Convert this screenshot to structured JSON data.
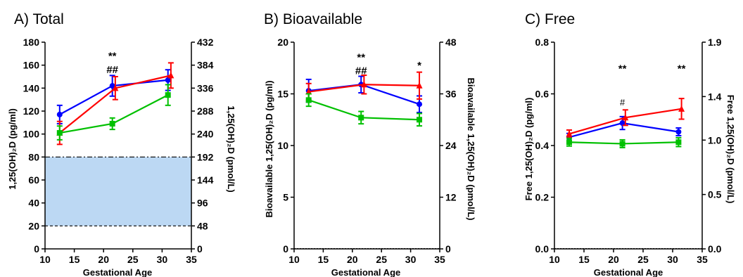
{
  "chart_data": [
    {
      "type": "line",
      "title": "A) Total",
      "xlabel": "Gestational Age",
      "ylabel": "1,25(OH)₂D (pg/ml)",
      "ylabel_right": "1,25(OH)₂D (pmol/L)",
      "xlim": [
        10,
        35
      ],
      "ylim": [
        0,
        180
      ],
      "xticks": [
        "10",
        "15",
        "20",
        "25",
        "30",
        "35"
      ],
      "yticks": [
        "0",
        "20",
        "40",
        "60",
        "80",
        "100",
        "120",
        "140",
        "160",
        "180"
      ],
      "yticks_right": [
        "0",
        "48",
        "96",
        "144",
        "192",
        "240",
        "288",
        "336",
        "384",
        "432"
      ],
      "reference_band": [
        20,
        80
      ],
      "series": [
        {
          "color": "#0000ff",
          "marker": "circle",
          "x": [
            12.5,
            21.5,
            31
          ],
          "y": [
            117,
            142,
            147
          ],
          "err": [
            8,
            9,
            9
          ]
        },
        {
          "color": "#ff0000",
          "marker": "triangle",
          "x": [
            12.5,
            22,
            31.5
          ],
          "y": [
            101,
            140,
            151
          ],
          "err": [
            10,
            10,
            11
          ]
        },
        {
          "color": "#00c000",
          "marker": "square",
          "x": [
            12.5,
            21.5,
            31
          ],
          "y": [
            101,
            109,
            134
          ],
          "err": [
            6,
            5,
            9
          ]
        }
      ],
      "annotations": [
        {
          "text": "**",
          "x": 21.5,
          "y": 165
        },
        {
          "text": "##",
          "x": 21.5,
          "y": 153
        }
      ]
    },
    {
      "type": "line",
      "title": "B) Bioavailable",
      "xlabel": "Gestational Age",
      "ylabel": "Bioavailable 1,25(OH)₂D (pg/ml)",
      "ylabel_right": "Bioavailable 1,25(OH)₂D (pmol/L)",
      "xlim": [
        10,
        35
      ],
      "ylim": [
        0,
        20
      ],
      "xticks": [
        "10",
        "15",
        "20",
        "25",
        "30",
        "35"
      ],
      "yticks": [
        "0",
        "5",
        "10",
        "15",
        "20"
      ],
      "yticks_right": [
        "0",
        "12",
        "24",
        "36",
        "48"
      ],
      "series": [
        {
          "color": "#0000ff",
          "marker": "circle",
          "x": [
            12.5,
            21.5,
            31.5
          ],
          "y": [
            15.3,
            15.9,
            14.0
          ],
          "err": [
            1.1,
            0.8,
            0.8
          ]
        },
        {
          "color": "#ff0000",
          "marker": "triangle",
          "x": [
            12.5,
            22,
            31.5
          ],
          "y": [
            15.2,
            15.9,
            15.8
          ],
          "err": [
            0.8,
            0.9,
            1.3
          ]
        },
        {
          "color": "#00c000",
          "marker": "square",
          "x": [
            12.5,
            21.5,
            31.5
          ],
          "y": [
            14.4,
            12.7,
            12.5
          ],
          "err": [
            0.6,
            0.6,
            0.6
          ]
        }
      ],
      "annotations": [
        {
          "text": "**",
          "x": 21.5,
          "y": 18.2
        },
        {
          "text": "##",
          "x": 21.5,
          "y": 16.9
        },
        {
          "text": "*",
          "x": 31.5,
          "y": 17.4
        }
      ]
    },
    {
      "type": "line",
      "title": "C) Free",
      "xlabel": "Gestational Age",
      "ylabel": "Free 1,25(OH)₂D (pg/ml)",
      "ylabel_right": "Free 1,25(OH)₂D (pmol/L)",
      "xlim": [
        10,
        35
      ],
      "ylim": [
        0,
        0.8
      ],
      "xticks": [
        "10",
        "15",
        "20",
        "25",
        "30",
        "35"
      ],
      "yticks": [
        "0.0",
        "0.2",
        "0.4",
        "0.6",
        "0.8"
      ],
      "yticks_right": [
        "0.0",
        "0.5",
        "1.0",
        "1.4",
        "1.9"
      ],
      "yticks_right_values": [
        0,
        0.2105,
        0.421,
        0.5895,
        0.8
      ],
      "series": [
        {
          "color": "#0000ff",
          "marker": "circle",
          "x": [
            12.5,
            21.5,
            31
          ],
          "y": [
            0.432,
            0.487,
            0.453
          ],
          "err": [
            0.015,
            0.025,
            0.015
          ]
        },
        {
          "color": "#ff0000",
          "marker": "triangle",
          "x": [
            12.5,
            22,
            31.5
          ],
          "y": [
            0.445,
            0.508,
            0.542
          ],
          "err": [
            0.015,
            0.03,
            0.04
          ]
        },
        {
          "color": "#00c000",
          "marker": "square",
          "x": [
            12.5,
            21.5,
            31
          ],
          "y": [
            0.413,
            0.407,
            0.413
          ],
          "err": [
            0.015,
            0.015,
            0.017
          ]
        }
      ],
      "annotations": [
        {
          "text": "**",
          "x": 21.5,
          "y": 0.685
        },
        {
          "text": "#",
          "x": 21.5,
          "y": 0.555
        },
        {
          "text": "**",
          "x": 31.5,
          "y": 0.685
        }
      ]
    }
  ]
}
